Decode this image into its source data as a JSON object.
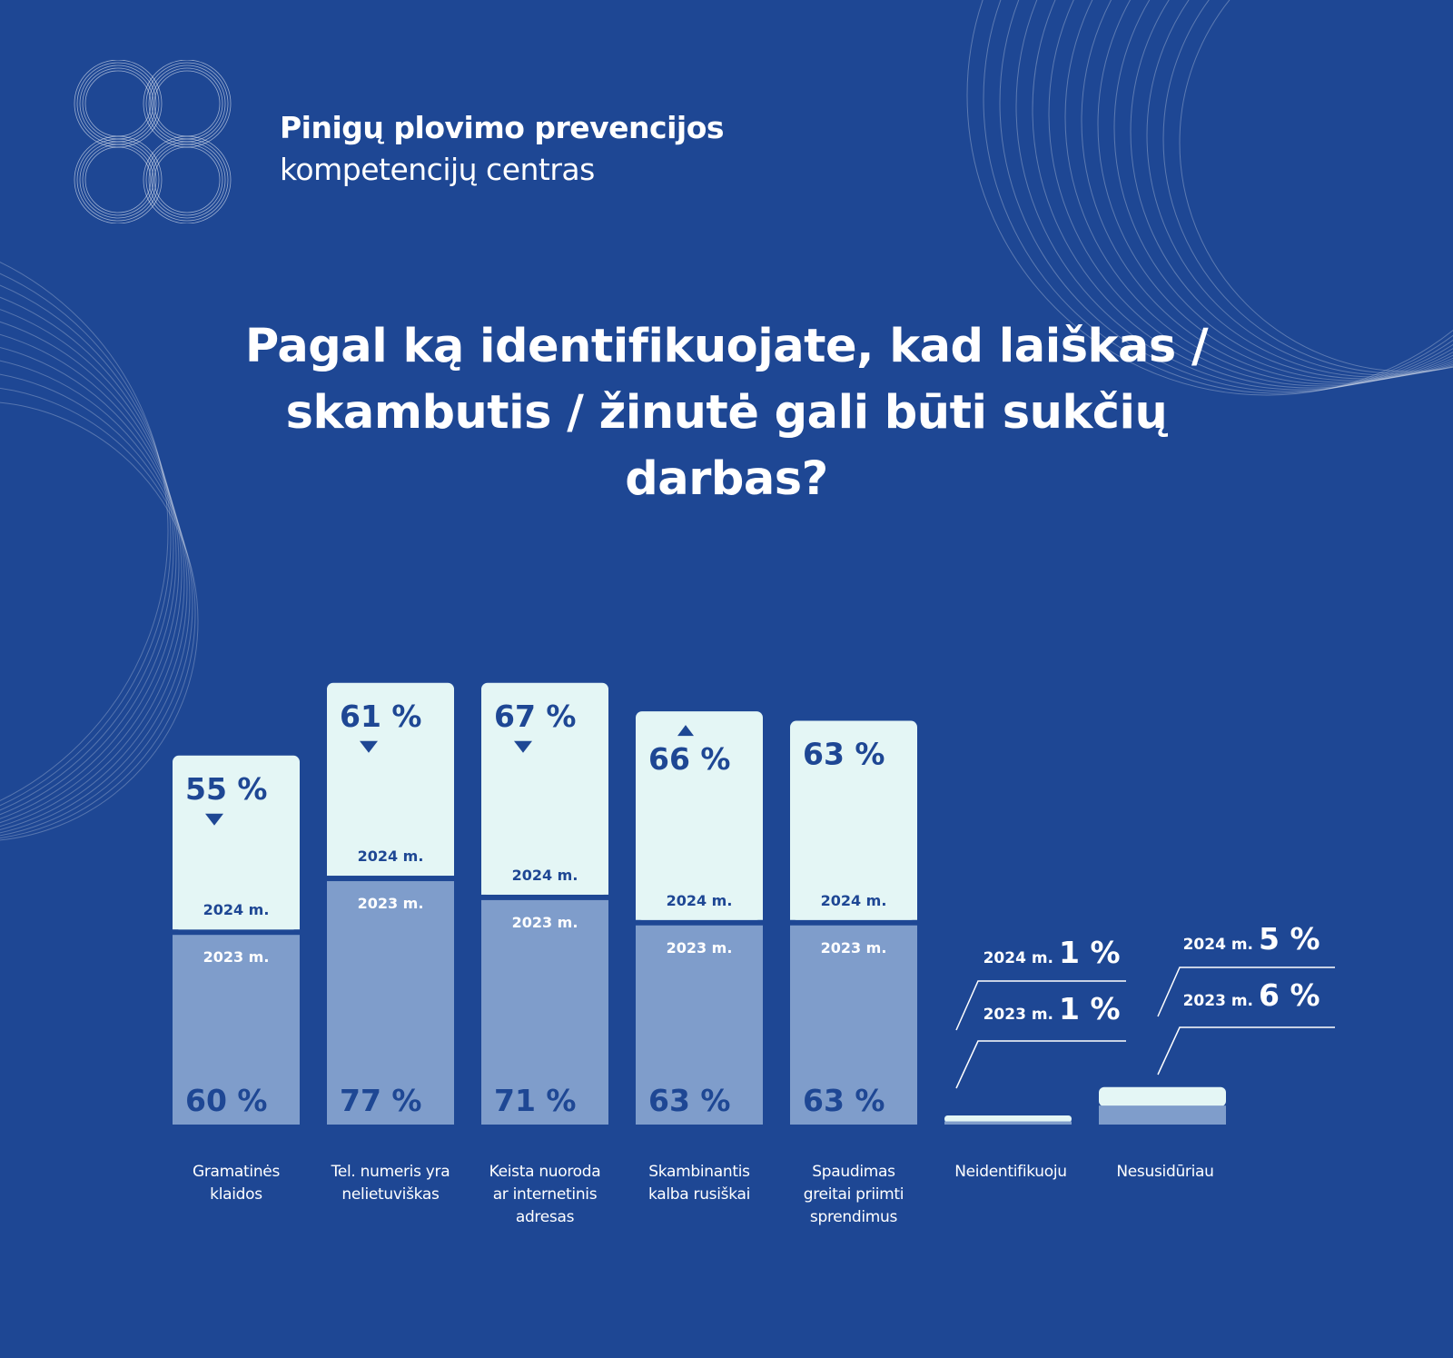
{
  "brand": {
    "line1": "Pinigų plovimo prevencijos",
    "line2": "kompetencijų centras"
  },
  "colors": {
    "background": "#1e4794",
    "bar_2024": "#e4f6f5",
    "bar_2023": "#7f9dcb",
    "value_text": "#1e4794"
  },
  "chart_data": {
    "type": "bar",
    "title": "Pagal ką identifikuojate, kad laiškas / skambutis / žinutė gali būti sukčių darbas?",
    "categories": [
      "Gramatinės klaidos",
      "Tel. numeris yra nelietuviškas",
      "Keista nuoroda ar internetinis adresas",
      "Skambinantis kalba rusiškai",
      "Spaudimas greitai priimti sprendimus",
      "Neidentifikuoju",
      "Nesusidūriau"
    ],
    "category_lines": [
      [
        "Gramatinės",
        "klaidos"
      ],
      [
        "Tel. numeris yra",
        "nelietuviškas"
      ],
      [
        "Keista nuoroda",
        "ar internetinis",
        "adresas"
      ],
      [
        "Skambinantis",
        "kalba rusiškai"
      ],
      [
        "Spaudimas",
        "greitai priimti",
        "sprendimus"
      ],
      [
        "Neidentifikuoju"
      ],
      [
        "Nesusidūriau"
      ]
    ],
    "series": [
      {
        "name": "2024 m.",
        "values": [
          55,
          61,
          67,
          66,
          63,
          1,
          5
        ],
        "labels": [
          "55 %",
          "61 %",
          "67 %",
          "66 %",
          "63 %",
          "1 %",
          "5 %"
        ]
      },
      {
        "name": "2023 m.",
        "values": [
          60,
          77,
          71,
          63,
          63,
          1,
          6
        ],
        "labels": [
          "60 %",
          "77 %",
          "71 %",
          "63 %",
          "63 %",
          "1 %",
          "6 %"
        ]
      }
    ],
    "trend_2024": [
      "down",
      "down",
      "down",
      "up",
      "none",
      "none",
      "none"
    ],
    "stacked": true,
    "legend": "inline"
  }
}
